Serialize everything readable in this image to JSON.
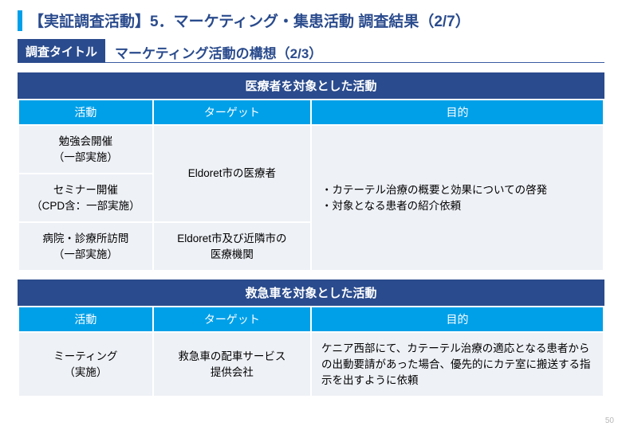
{
  "colors": {
    "accent_bar": "#00a0e9",
    "title_color": "#2a4b8d",
    "subtitle_bg": "#2a4b8d",
    "subtitle_text": "#2a4b8d",
    "section_header_bg": "#2a4b8d",
    "th_bg": "#00a0e9",
    "td_bg": "#eef1f6"
  },
  "title": "【実証調査活動】5．マーケティング・集患活動 調査結果（2/7）",
  "subtitle_label": "調査タイトル",
  "subtitle_text": "マーケティング活動の構想（2/3）",
  "section1": {
    "header": "医療者を対象とした活動",
    "cols": {
      "activity": "活動",
      "target": "ターゲット",
      "objective": "目的"
    },
    "rows": {
      "r1_activity": "勉強会開催\n（一部実施）",
      "r2_activity": "セミナー開催\n（CPD含：一部実施）",
      "r12_target": "Eldoret市の医療者",
      "r3_activity": "病院・診療所訪問\n（一部実施）",
      "r3_target": "Eldoret市及び近隣市の\n医療機関",
      "objective": "・カテーテル治療の概要と効果についての啓発\n・対象となる患者の紹介依頼"
    }
  },
  "section2": {
    "header": "救急車を対象とした活動",
    "cols": {
      "activity": "活動",
      "target": "ターゲット",
      "objective": "目的"
    },
    "rows": {
      "r1_activity": "ミーティング\n（実施）",
      "r1_target": "救急車の配車サービス\n提供会社",
      "r1_objective": "ケニア西部にて、カテーテル治療の適応となる患者からの出動要請があった場合、優先的にカテ室に搬送する指示を出すように依頼"
    }
  },
  "page_number": "50"
}
